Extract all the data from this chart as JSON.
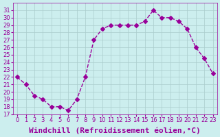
{
  "x": [
    0,
    1,
    2,
    3,
    4,
    5,
    6,
    7,
    8,
    9,
    10,
    11,
    12,
    13,
    14,
    15,
    16,
    17,
    18,
    19,
    20,
    21,
    22,
    23
  ],
  "y": [
    22,
    21,
    19.5,
    19,
    18,
    18,
    17.5,
    19,
    22,
    27,
    28.5,
    29,
    29,
    29,
    29,
    29.5,
    31,
    30,
    30,
    29.5,
    28.5,
    26,
    24.5,
    22.5
  ],
  "line_color": "#990099",
  "marker": "D",
  "marker_size": 3,
  "bg_color": "#cceeee",
  "grid_color": "#aacccc",
  "xlabel": "Windchill (Refroidissement éolien,°C)",
  "xlabel_fontsize": 8,
  "tick_fontsize": 7,
  "ylim": [
    17,
    32
  ],
  "yticks": [
    17,
    18,
    19,
    20,
    21,
    22,
    23,
    24,
    25,
    26,
    27,
    28,
    29,
    30,
    31
  ],
  "xticks": [
    0,
    1,
    2,
    3,
    4,
    5,
    6,
    7,
    8,
    9,
    10,
    11,
    12,
    13,
    14,
    15,
    16,
    17,
    18,
    19,
    20,
    21,
    22,
    23
  ]
}
